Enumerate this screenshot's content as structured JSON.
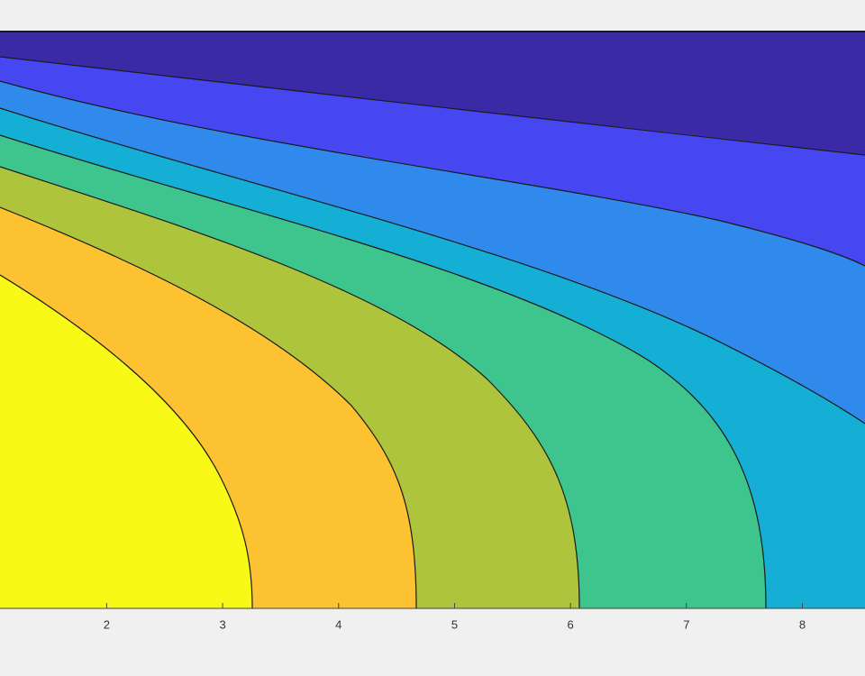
{
  "chart_data": {
    "type": "contour",
    "xlim": [
      1.08,
      8.54
    ],
    "xticks": [
      2,
      3,
      4,
      5,
      6,
      7,
      8
    ],
    "colors": [
      "#f9f918",
      "#fcc232",
      "#aec43c",
      "#3ec58e",
      "#15afd6",
      "#2f8aec",
      "#4747f2",
      "#3b2aa6"
    ]
  }
}
